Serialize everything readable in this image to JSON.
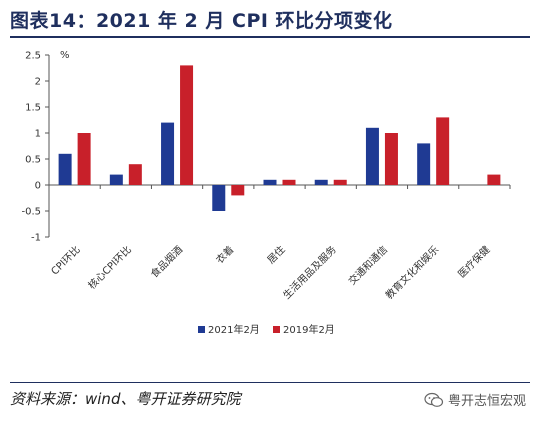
{
  "header": {
    "title": "图表14：2021 年 2 月 CPI 环比分项变化"
  },
  "source": "资料来源：wind、粤开证券研究院",
  "watermark": "粤开志恒宏观",
  "colors": {
    "series1": "#1f3a93",
    "series2": "#c8202a",
    "title": "#1f2f5e"
  },
  "chart_data": {
    "type": "bar",
    "title": "",
    "unit_label": "%",
    "xlabel": "",
    "ylabel": "",
    "ylim": [
      -1,
      2.5
    ],
    "yticks": [
      "2.5",
      "2",
      "1.5",
      "1",
      "0.5",
      "0",
      "-0.5",
      "-1"
    ],
    "ytick_values": [
      2.5,
      2,
      1.5,
      1,
      0.5,
      0,
      -0.5,
      -1
    ],
    "categories": [
      "CPI环比",
      "核心CPI环比",
      "食品烟酒",
      "衣着",
      "居住",
      "生活用品及服务",
      "交通和通信",
      "教育文化和娱乐",
      "医疗保健"
    ],
    "series": [
      {
        "name": "2021年2月",
        "values": [
          0.6,
          0.2,
          1.2,
          -0.5,
          0.1,
          0.1,
          1.1,
          0.8,
          null
        ]
      },
      {
        "name": "2019年2月",
        "values": [
          1.0,
          0.4,
          2.3,
          -0.2,
          0.1,
          0.1,
          1.0,
          1.3,
          0.2
        ]
      }
    ],
    "legend_position": "bottom-center",
    "grid": false
  }
}
